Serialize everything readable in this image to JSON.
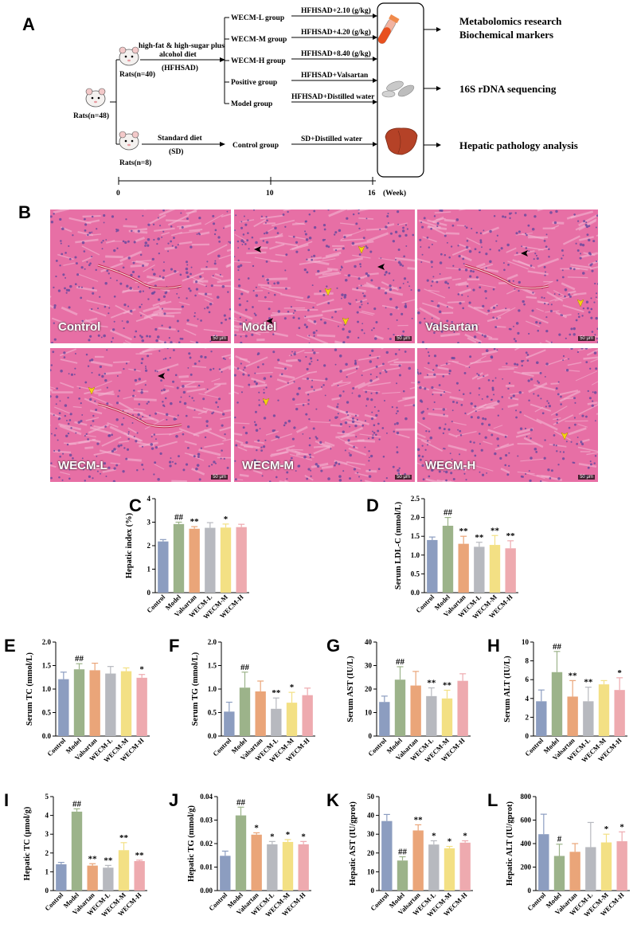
{
  "panels": {
    "A": "A",
    "B": "B"
  },
  "diagram": {
    "rats_total": "Rats(n=48)",
    "rats_hf": "Rats(n=40)",
    "rats_sd": "Rats(n=8)",
    "diet_hf_line1": "high-fat & high-sugar plus",
    "diet_hf_line2": "alcohol diet",
    "diet_hf_line3": "(HFHSAD)",
    "diet_sd_line1": "Standard diet",
    "diet_sd_line2": "(SD)",
    "groups": [
      "WECM-L group",
      "WECM-M group",
      "WECM-H group",
      "Positive group",
      "Model group"
    ],
    "control_group": "Control group",
    "treatments": [
      "HFHSAD+2.10 (g/kg)",
      "HFHSAD+4.20 (g/kg)",
      "HFHSAD+8.40 (g/kg)",
      "HFHSAD+Valsartan",
      "HFHSAD+Distilled water"
    ],
    "control_treatment": "SD+Distilled water",
    "outcomes": [
      "Metabolomics research",
      "Biochemical markers",
      "16S rDNA sequencing",
      "Hepatic pathology analysis"
    ],
    "timeline_ticks": [
      "0",
      "10",
      "16"
    ],
    "timeline_unit": "(Week)"
  },
  "histology": {
    "labels": [
      "Control",
      "Model",
      "Valsartan",
      "WECM-L",
      "WECM-M",
      "WECM-H"
    ],
    "scale": "50 μm"
  },
  "colors": {
    "Control": "#8c9dc0",
    "Model": "#9cb38a",
    "Valsartan": "#eaa579",
    "WECM-L": "#b7b9bf",
    "WECM-M": "#f3e084",
    "WECM-H": "#eeaaaf",
    "tissue": "#e76fa5",
    "tissue_dark": "#c9458a",
    "nuclei": "#6a4a9e"
  },
  "chart_data": [
    {
      "id": "C",
      "type": "bar",
      "categories": [
        "Control",
        "Model",
        "Valsartan",
        "WECM-L",
        "WECM-M",
        "WECM-H"
      ],
      "ylabel": "Hepatic index (%)",
      "ylim": [
        0,
        4
      ],
      "yticks": [
        "0",
        "1",
        "2",
        "3",
        "4"
      ],
      "values": [
        2.18,
        2.92,
        2.72,
        2.76,
        2.77,
        2.79
      ],
      "errors": [
        0.08,
        0.08,
        0.09,
        0.22,
        0.15,
        0.12
      ],
      "sig": [
        "",
        "##",
        "**",
        "",
        "*",
        ""
      ]
    },
    {
      "id": "D",
      "type": "bar",
      "categories": [
        "Control",
        "Model",
        "Valsartan",
        "WECM-L",
        "WECM-M",
        "WECM-H"
      ],
      "ylabel": "Serum LDL-C (mmol/L)",
      "ylim": [
        0,
        2.5
      ],
      "yticks": [
        "0.0",
        "0.5",
        "1.0",
        "1.5",
        "2.0",
        "2.5"
      ],
      "values": [
        1.4,
        1.78,
        1.3,
        1.22,
        1.27,
        1.18
      ],
      "errors": [
        0.08,
        0.22,
        0.2,
        0.12,
        0.25,
        0.2
      ],
      "sig": [
        "",
        "##",
        "**",
        "**",
        "**",
        "**"
      ]
    },
    {
      "id": "E",
      "type": "bar",
      "categories": [
        "Control",
        "Model",
        "Valsartan",
        "WECM-L",
        "WECM-M",
        "WECM-H"
      ],
      "ylabel": "Serum TC (mmol/L)",
      "ylim": [
        0,
        2.0
      ],
      "yticks": [
        "0.0",
        "0.5",
        "1.0",
        "1.5",
        "2.0"
      ],
      "values": [
        1.21,
        1.42,
        1.4,
        1.33,
        1.38,
        1.24
      ],
      "errors": [
        0.15,
        0.12,
        0.15,
        0.15,
        0.07,
        0.07
      ],
      "sig": [
        "",
        "##",
        "",
        "",
        "",
        "*"
      ]
    },
    {
      "id": "F",
      "type": "bar",
      "categories": [
        "Control",
        "Model",
        "Valsartan",
        "WECM-L",
        "WECM-M",
        "WECM-H"
      ],
      "ylabel": "Serum TG (mmol/L)",
      "ylim": [
        0,
        2.0
      ],
      "yticks": [
        "0.0",
        "0.5",
        "1.0",
        "1.5",
        "2.0"
      ],
      "values": [
        0.52,
        1.03,
        0.95,
        0.58,
        0.71,
        0.87
      ],
      "errors": [
        0.2,
        0.33,
        0.22,
        0.23,
        0.22,
        0.15
      ],
      "sig": [
        "",
        "##",
        "",
        "**",
        "*",
        ""
      ]
    },
    {
      "id": "G",
      "type": "bar",
      "categories": [
        "Control",
        "Model",
        "Valsartan",
        "WECM-L",
        "WECM-M",
        "WECM-H"
      ],
      "ylabel": "Serum AST (IU/L)",
      "ylim": [
        0,
        40
      ],
      "yticks": [
        "0",
        "10",
        "20",
        "30",
        "40"
      ],
      "values": [
        14.5,
        24.0,
        21.5,
        17.0,
        16.0,
        23.5
      ],
      "errors": [
        2.5,
        5.5,
        6.0,
        3.5,
        3.5,
        3.0
      ],
      "sig": [
        "",
        "##",
        "",
        "**",
        "**",
        ""
      ]
    },
    {
      "id": "H",
      "type": "bar",
      "categories": [
        "Control",
        "Model",
        "Valsartan",
        "WECM-L",
        "WECM-M",
        "WECM-H"
      ],
      "ylabel": "Serum ALT (IU/L)",
      "ylim": [
        0,
        10
      ],
      "yticks": [
        "0",
        "2",
        "4",
        "6",
        "8",
        "10"
      ],
      "values": [
        3.7,
        6.8,
        4.2,
        3.7,
        5.5,
        4.9
      ],
      "errors": [
        1.2,
        2.2,
        1.7,
        1.5,
        0.4,
        1.3
      ],
      "sig": [
        "",
        "##",
        "**",
        "**",
        "",
        "*"
      ]
    },
    {
      "id": "I",
      "type": "bar",
      "categories": [
        "Control",
        "Model",
        "Valsartan",
        "WECM-L",
        "WECM-M",
        "WECM-H"
      ],
      "ylabel": "Hepatic TC (μmol/g)",
      "ylim": [
        0,
        5
      ],
      "yticks": [
        "0",
        "1",
        "2",
        "3",
        "4",
        "5"
      ],
      "values": [
        1.4,
        4.2,
        1.33,
        1.22,
        2.15,
        1.57
      ],
      "errors": [
        0.1,
        0.15,
        0.1,
        0.12,
        0.4,
        0.05
      ],
      "sig": [
        "",
        "##",
        "**",
        "**",
        "**",
        "**"
      ]
    },
    {
      "id": "J",
      "type": "bar",
      "categories": [
        "Control",
        "Model",
        "Valsartan",
        "WECM-L",
        "WECM-M",
        "WECM-H"
      ],
      "ylabel": "Hepatic TG (mmol/g)",
      "ylim": [
        0,
        0.04
      ],
      "yticks": [
        "0.00",
        "0.01",
        "0.02",
        "0.03",
        "0.04"
      ],
      "values": [
        0.0148,
        0.032,
        0.0238,
        0.0197,
        0.0207,
        0.0197
      ],
      "errors": [
        0.002,
        0.0035,
        0.0008,
        0.0012,
        0.001,
        0.0012
      ],
      "sig": [
        "",
        "##",
        "*",
        "*",
        "*",
        "*"
      ]
    },
    {
      "id": "K",
      "type": "bar",
      "categories": [
        "Control",
        "Model",
        "Valsartan",
        "WECM-L",
        "WECM-M",
        "WECM-H"
      ],
      "ylabel": "Hepatic AST (IU/gprot)",
      "ylim": [
        0,
        50
      ],
      "yticks": [
        "0",
        "10",
        "20",
        "30",
        "40",
        "50"
      ],
      "values": [
        37.0,
        16.0,
        32.0,
        24.5,
        22.5,
        25.5
      ],
      "errors": [
        3.5,
        2.0,
        3.0,
        2.0,
        1.0,
        1.0
      ],
      "sig": [
        "",
        "##",
        "**",
        "*",
        "*",
        "*"
      ]
    },
    {
      "id": "L",
      "type": "bar",
      "categories": [
        "Control",
        "Model",
        "Valsartan",
        "WECM-L",
        "WECM-M",
        "WECM-H"
      ],
      "ylabel": "Hepatic ALT (IU/gprot)",
      "ylim": [
        0,
        800
      ],
      "yticks": [
        "0",
        "200",
        "400",
        "600",
        "800"
      ],
      "values": [
        480,
        295,
        330,
        370,
        410,
        420
      ],
      "errors": [
        170,
        100,
        70,
        210,
        70,
        80
      ],
      "sig": [
        "",
        "#",
        "",
        "",
        "*",
        "*"
      ]
    }
  ]
}
